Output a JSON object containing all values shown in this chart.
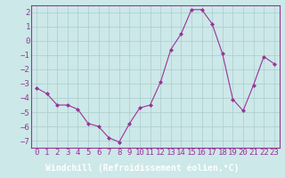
{
  "x": [
    0,
    1,
    2,
    3,
    4,
    5,
    6,
    7,
    8,
    9,
    10,
    11,
    12,
    13,
    14,
    15,
    16,
    17,
    18,
    19,
    20,
    21,
    22,
    23
  ],
  "y": [
    -3.3,
    -3.7,
    -4.5,
    -4.5,
    -4.8,
    -5.8,
    -6.0,
    -6.8,
    -7.1,
    -5.8,
    -4.7,
    -4.5,
    -2.9,
    -0.6,
    0.5,
    2.2,
    2.2,
    1.2,
    -0.9,
    -4.1,
    -4.9,
    -3.1,
    -1.1,
    -1.6
  ],
  "line_color": "#993399",
  "marker": "D",
  "marker_size": 2.0,
  "background_color": "#cce8e8",
  "grid_color": "#aacccc",
  "xlabel": "Windchill (Refroidissement éolien,°C)",
  "xlabel_bg_color": "#9933aa",
  "xlabel_text_color": "#ffffff",
  "title": "",
  "xlim": [
    -0.5,
    23.5
  ],
  "ylim": [
    -7.5,
    2.5
  ],
  "yticks": [
    -7,
    -6,
    -5,
    -4,
    -3,
    -2,
    -1,
    0,
    1,
    2
  ],
  "xticks": [
    0,
    1,
    2,
    3,
    4,
    5,
    6,
    7,
    8,
    9,
    10,
    11,
    12,
    13,
    14,
    15,
    16,
    17,
    18,
    19,
    20,
    21,
    22,
    23
  ],
  "tick_color": "#993399",
  "spine_color": "#993399",
  "tick_fontsize": 6.5,
  "xlabel_fontsize": 7.0
}
